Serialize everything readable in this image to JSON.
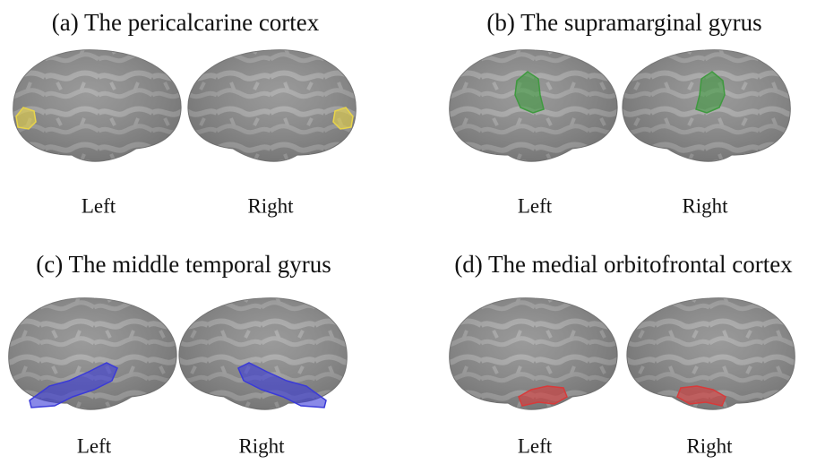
{
  "panels": [
    {
      "title": "(a)  The pericalcarine cortex",
      "region_color": "#e8d44a",
      "images": [
        {
          "label": "Left"
        },
        {
          "label": "Right"
        }
      ]
    },
    {
      "title": "(b)  The supramarginal gyrus",
      "region_color": "#3f9a3f",
      "images": [
        {
          "label": "Left"
        },
        {
          "label": "Right"
        }
      ]
    },
    {
      "title": "(c) The middle  temporal gyrus",
      "region_color": "#3a3ad8",
      "images": [
        {
          "label": "Left"
        },
        {
          "label": "Right"
        }
      ]
    },
    {
      "title": "(d)  The medial orbitofrontal cortex",
      "region_color": "#d83a3a",
      "images": [
        {
          "label": "Left"
        },
        {
          "label": "Right"
        }
      ]
    }
  ]
}
